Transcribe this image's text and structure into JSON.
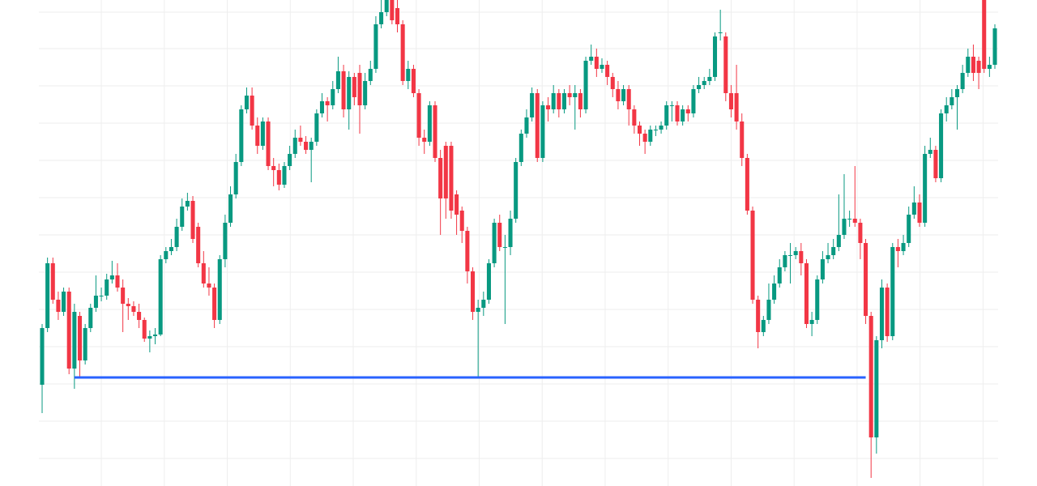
{
  "chart_data": {
    "type": "candlestick",
    "up_color": "#089981",
    "down_color": "#f23645",
    "grid": true,
    "grid_color": "#eeeeee",
    "ylim": [
      0,
      600
    ],
    "yticks": [
      34,
      80,
      126,
      172,
      218,
      264,
      310,
      356,
      402,
      448,
      494,
      540,
      585
    ],
    "xlim": [
      -0.6,
      177.6
    ],
    "xticks": [
      11,
      22.7,
      34.4,
      46.1,
      57.8,
      69.5,
      81.2,
      92.9,
      104.6,
      116.3,
      128,
      139.7,
      151.4,
      163.1,
      174.8
    ],
    "hline": {
      "value": 134,
      "from_index": 6,
      "to_index": 153,
      "color": "#2962ff"
    },
    "open": [
      125,
      195,
      275,
      230,
      215,
      240,
      145,
      210,
      155,
      195,
      220,
      235,
      235,
      255,
      260,
      245,
      225,
      222,
      215,
      205,
      182,
      185,
      187,
      280,
      290,
      295,
      320,
      345,
      352,
      320,
      275,
      250,
      245,
      205,
      280,
      325,
      360,
      400,
      465,
      482,
      445,
      420,
      450,
      395,
      390,
      372,
      395,
      410,
      430,
      425,
      415,
      425,
      460,
      475,
      470,
      490,
      512,
      465,
      505,
      510,
      470,
      500,
      515,
      570,
      585,
      600,
      590,
      570,
      500,
      515,
      485,
      430,
      425,
      470,
      405,
      420,
      420,
      360,
      340,
      315,
      265,
      215,
      220,
      230,
      275,
      325,
      295,
      295,
      330,
      400,
      435,
      455,
      485,
      405,
      470,
      465,
      485,
      465,
      485,
      480,
      485,
      465,
      525,
      530,
      515,
      520,
      505,
      490,
      475,
      490,
      465,
      445,
      435,
      425,
      440,
      440,
      445,
      470,
      470,
      450,
      465,
      460,
      490,
      495,
      500,
      505,
      560,
      555,
      485,
      485,
      450,
      405,
      340,
      230,
      190,
      205,
      230,
      250,
      270,
      285,
      285,
      290,
      275,
      200,
      205,
      255,
      280,
      285,
      295,
      310,
      330,
      330,
      325,
      300,
      210,
      60,
      180,
      245,
      185,
      295,
      290,
      300,
      335,
      350,
      325,
      410,
      415,
      380,
      460,
      470,
      480,
      490,
      510,
      530,
      525,
      600,
      515,
      520
    ],
    "high": [
      200,
      282,
      282,
      240,
      245,
      245,
      225,
      215,
      200,
      225,
      260,
      245,
      262,
      278,
      275,
      255,
      232,
      228,
      225,
      208,
      192,
      195,
      285,
      295,
      305,
      330,
      355,
      362,
      358,
      325,
      290,
      270,
      250,
      285,
      335,
      370,
      410,
      470,
      492,
      492,
      455,
      455,
      455,
      405,
      398,
      400,
      420,
      440,
      445,
      432,
      430,
      465,
      485,
      480,
      500,
      530,
      520,
      512,
      510,
      520,
      510,
      525,
      580,
      600,
      600,
      600,
      600,
      575,
      525,
      520,
      490,
      440,
      475,
      475,
      415,
      425,
      425,
      365,
      345,
      320,
      270,
      230,
      240,
      280,
      330,
      335,
      310,
      340,
      405,
      440,
      465,
      492,
      490,
      475,
      480,
      495,
      490,
      490,
      495,
      495,
      490,
      530,
      545,
      540,
      528,
      525,
      510,
      500,
      495,
      495,
      470,
      450,
      440,
      445,
      445,
      450,
      475,
      475,
      475,
      470,
      470,
      495,
      505,
      505,
      515,
      560,
      588,
      560,
      495,
      520,
      460,
      410,
      345,
      235,
      210,
      250,
      260,
      280,
      290,
      300,
      295,
      300,
      280,
      215,
      260,
      290,
      300,
      305,
      360,
      385,
      340,
      395,
      330,
      305,
      215,
      185,
      255,
      250,
      300,
      305,
      310,
      345,
      370,
      360,
      420,
      430,
      420,
      465,
      480,
      490,
      495,
      520,
      540,
      545,
      530,
      600,
      530,
      570
    ],
    "low": [
      90,
      190,
      225,
      205,
      210,
      138,
      120,
      135,
      150,
      190,
      215,
      228,
      230,
      250,
      240,
      190,
      205,
      210,
      195,
      178,
      165,
      175,
      185,
      275,
      285,
      290,
      315,
      340,
      300,
      270,
      245,
      235,
      195,
      200,
      270,
      320,
      355,
      395,
      460,
      440,
      410,
      415,
      390,
      370,
      365,
      368,
      390,
      405,
      420,
      410,
      375,
      420,
      455,
      450,
      465,
      485,
      455,
      440,
      470,
      435,
      465,
      495,
      510,
      565,
      580,
      570,
      560,
      495,
      490,
      480,
      420,
      410,
      420,
      400,
      310,
      330,
      330,
      310,
      300,
      250,
      205,
      135,
      210,
      225,
      270,
      290,
      200,
      285,
      325,
      395,
      430,
      450,
      400,
      400,
      450,
      460,
      455,
      460,
      470,
      440,
      455,
      460,
      520,
      505,
      510,
      495,
      480,
      465,
      470,
      445,
      435,
      420,
      410,
      420,
      432,
      435,
      440,
      450,
      445,
      445,
      450,
      455,
      485,
      490,
      495,
      500,
      550,
      475,
      455,
      440,
      395,
      335,
      225,
      170,
      185,
      200,
      225,
      245,
      265,
      250,
      280,
      260,
      195,
      185,
      200,
      250,
      275,
      280,
      290,
      305,
      320,
      320,
      280,
      200,
      10,
      40,
      170,
      178,
      180,
      270,
      285,
      295,
      330,
      320,
      320,
      405,
      375,
      375,
      450,
      465,
      440,
      485,
      505,
      500,
      490,
      510,
      505,
      515
    ],
    "close": [
      195,
      275,
      230,
      215,
      240,
      145,
      215,
      155,
      195,
      220,
      235,
      235,
      255,
      260,
      245,
      225,
      222,
      215,
      205,
      182,
      185,
      187,
      280,
      290,
      295,
      320,
      345,
      352,
      305,
      275,
      250,
      245,
      205,
      280,
      325,
      360,
      400,
      465,
      482,
      445,
      420,
      450,
      395,
      390,
      372,
      395,
      410,
      430,
      425,
      415,
      425,
      460,
      475,
      470,
      490,
      512,
      465,
      505,
      480,
      470,
      500,
      515,
      570,
      585,
      600,
      575,
      570,
      500,
      515,
      485,
      430,
      425,
      470,
      405,
      355,
      355,
      340,
      335,
      315,
      265,
      215,
      220,
      230,
      275,
      325,
      295,
      295,
      330,
      400,
      435,
      455,
      485,
      405,
      470,
      465,
      485,
      465,
      485,
      480,
      485,
      465,
      525,
      530,
      515,
      520,
      505,
      490,
      475,
      490,
      465,
      445,
      435,
      425,
      440,
      440,
      445,
      470,
      470,
      450,
      465,
      460,
      490,
      495,
      500,
      505,
      555,
      560,
      485,
      465,
      450,
      405,
      340,
      230,
      190,
      205,
      230,
      250,
      270,
      285,
      285,
      290,
      275,
      200,
      205,
      255,
      280,
      285,
      295,
      310,
      330,
      330,
      325,
      300,
      210,
      60,
      180,
      245,
      185,
      295,
      290,
      300,
      335,
      350,
      325,
      410,
      415,
      380,
      460,
      470,
      480,
      490,
      510,
      530,
      510,
      510,
      515,
      520,
      565
    ]
  }
}
